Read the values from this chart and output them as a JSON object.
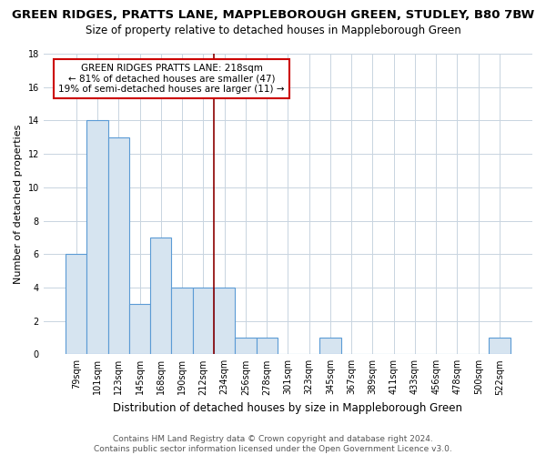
{
  "title": "GREEN RIDGES, PRATTS LANE, MAPPLEBOROUGH GREEN, STUDLEY, B80 7BW",
  "subtitle": "Size of property relative to detached houses in Mappleborough Green",
  "xlabel": "Distribution of detached houses by size in Mappleborough Green",
  "ylabel": "Number of detached properties",
  "categories": [
    "79sqm",
    "101sqm",
    "123sqm",
    "145sqm",
    "168sqm",
    "190sqm",
    "212sqm",
    "234sqm",
    "256sqm",
    "278sqm",
    "301sqm",
    "323sqm",
    "345sqm",
    "367sqm",
    "389sqm",
    "411sqm",
    "433sqm",
    "456sqm",
    "478sqm",
    "500sqm",
    "522sqm"
  ],
  "values": [
    6,
    14,
    13,
    3,
    7,
    4,
    4,
    4,
    1,
    1,
    0,
    0,
    1,
    0,
    0,
    0,
    0,
    0,
    0,
    0,
    1
  ],
  "bar_color": "#d6e4f0",
  "bar_edge_color": "#5b9bd5",
  "bar_linewidth": 0.8,
  "vline_x_index": 6.5,
  "vline_color": "#8b0000",
  "annotation_text": "GREEN RIDGES PRATTS LANE: 218sqm\n← 81% of detached houses are smaller (47)\n19% of semi-detached houses are larger (11) →",
  "annotation_box_color": "#ffffff",
  "annotation_box_edge": "#cc0000",
  "ylim": [
    0,
    18
  ],
  "yticks": [
    0,
    2,
    4,
    6,
    8,
    10,
    12,
    14,
    16,
    18
  ],
  "background_color": "#ffffff",
  "plot_bg_color": "#ffffff",
  "grid_color": "#c8d4e0",
  "footer": "Contains HM Land Registry data © Crown copyright and database right 2024.\nContains public sector information licensed under the Open Government Licence v3.0.",
  "title_fontsize": 9.5,
  "subtitle_fontsize": 8.5,
  "xlabel_fontsize": 8.5,
  "ylabel_fontsize": 8,
  "tick_fontsize": 7,
  "annotation_fontsize": 7.5,
  "footer_fontsize": 6.5
}
